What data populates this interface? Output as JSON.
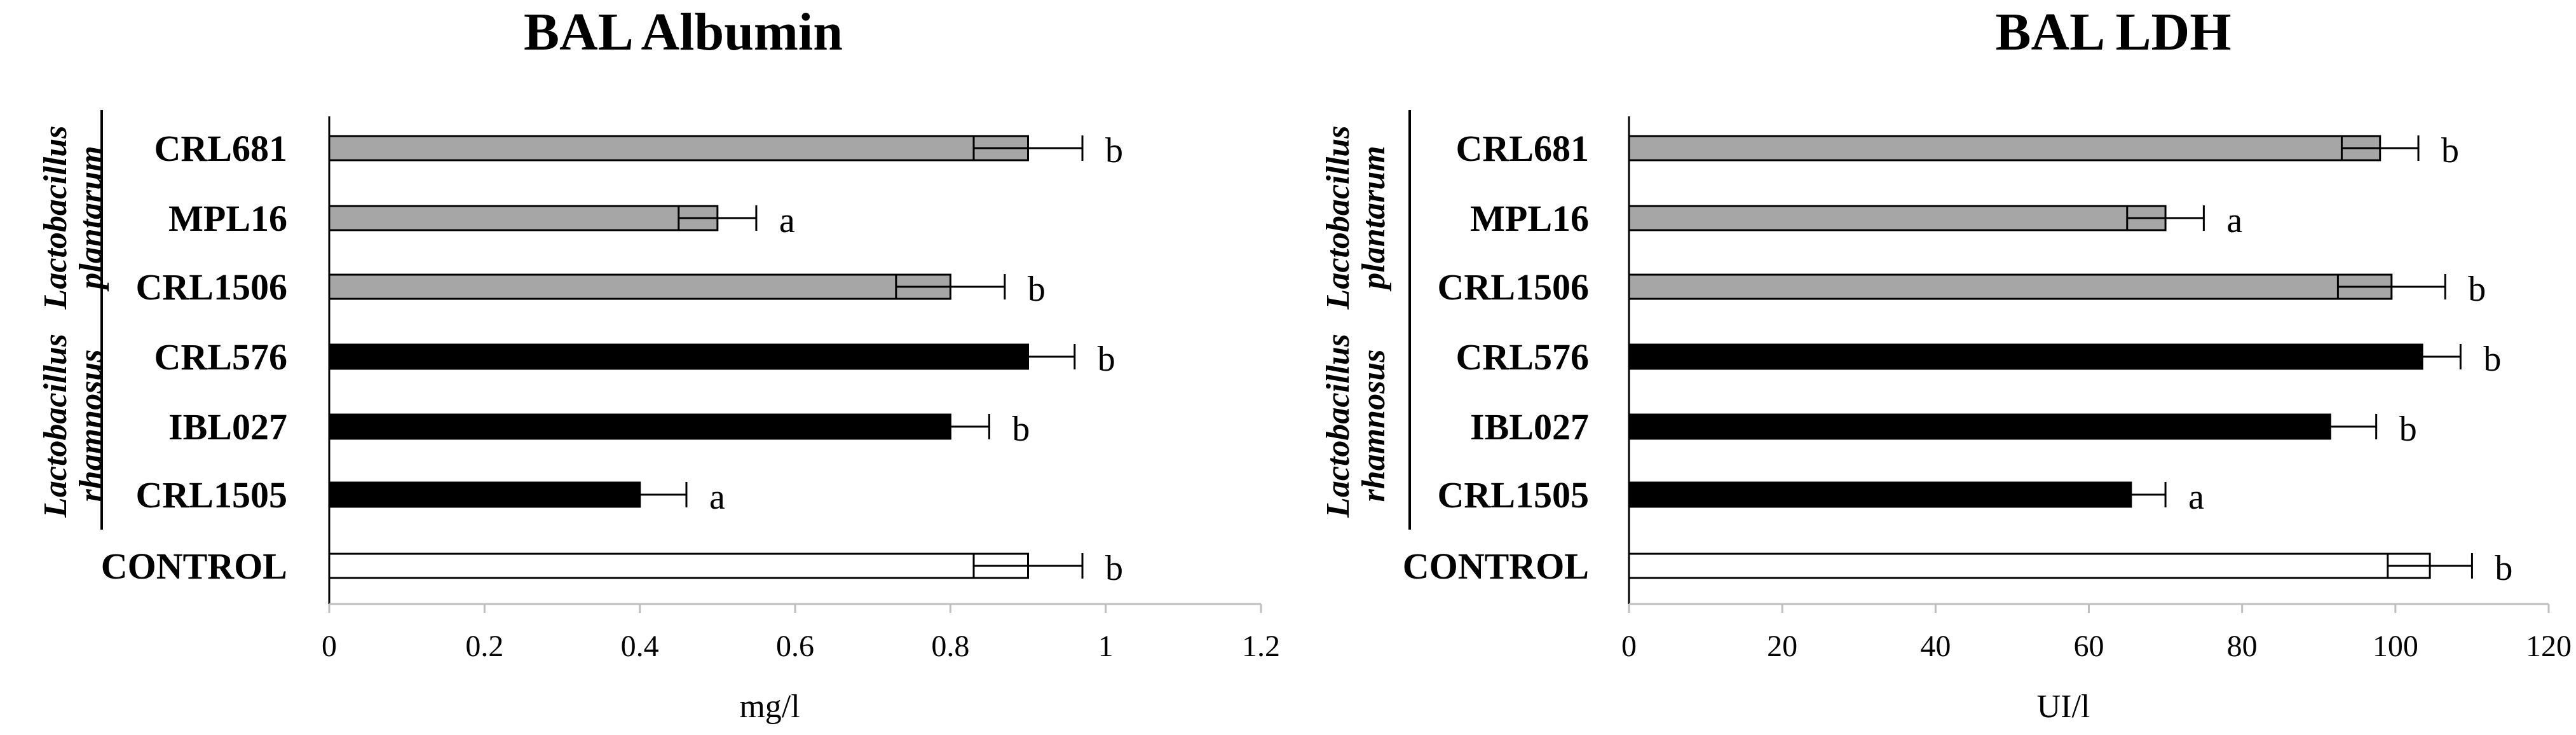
{
  "chart_data": [
    {
      "type": "bar",
      "orientation": "horizontal",
      "title": "BAL Albumin",
      "xlabel": "mg/l",
      "xlim": [
        0,
        1.2
      ],
      "ticks": [
        "0",
        "0.2",
        "0.4",
        "0.6",
        "0.8",
        "1",
        "1.2"
      ],
      "tick_values": [
        0,
        0.2,
        0.4,
        0.6,
        0.8,
        1.0,
        1.2
      ],
      "categories": [
        "CRL681",
        "MPL16",
        "CRL1506",
        "CRL576",
        "IBL027",
        "CRL1505",
        "CONTROL"
      ],
      "values": [
        0.9,
        0.5,
        0.8,
        0.9,
        0.8,
        0.4,
        0.9
      ],
      "error": [
        0.07,
        0.05,
        0.07,
        0.06,
        0.05,
        0.06,
        0.07
      ],
      "significance": [
        "b",
        "a",
        "b",
        "b",
        "b",
        "a",
        "b"
      ],
      "fills": [
        "#a6a6a6",
        "#a6a6a6",
        "#a6a6a6",
        "#000000",
        "#000000",
        "#000000",
        "#ffffff"
      ],
      "groups": [
        {
          "line1": "Lactobacillus",
          "line2": "plantarum",
          "members": [
            0,
            1,
            2
          ]
        },
        {
          "line1": "Lactobacillus",
          "line2": "rhamnosus",
          "members": [
            3,
            4,
            5
          ]
        }
      ]
    },
    {
      "type": "bar",
      "orientation": "horizontal",
      "title": "BAL LDH",
      "xlabel": "UI/l",
      "xlim": [
        0,
        120
      ],
      "ticks": [
        "0",
        "20",
        "40",
        "60",
        "80",
        "100",
        "120"
      ],
      "tick_values": [
        0,
        20,
        40,
        60,
        80,
        100,
        120
      ],
      "categories": [
        "CRL681",
        "MPL16",
        "CRL1506",
        "CRL576",
        "IBL027",
        "CRL1505",
        "CONTROL"
      ],
      "values": [
        98,
        70,
        99.5,
        103.5,
        91.5,
        65.5,
        104.5
      ],
      "error": [
        5,
        5,
        7,
        5,
        6,
        4.5,
        5.5
      ],
      "significance": [
        "b",
        "a",
        "b",
        "b",
        "b",
        "a",
        "b"
      ],
      "fills": [
        "#a6a6a6",
        "#a6a6a6",
        "#a6a6a6",
        "#000000",
        "#000000",
        "#000000",
        "#ffffff"
      ],
      "groups": [
        {
          "line1": "Lactobacillus",
          "line2": "plantarum",
          "members": [
            0,
            1,
            2
          ]
        },
        {
          "line1": "Lactobacillus",
          "line2": "rhamnosus",
          "members": [
            3,
            4,
            5
          ]
        }
      ]
    }
  ]
}
